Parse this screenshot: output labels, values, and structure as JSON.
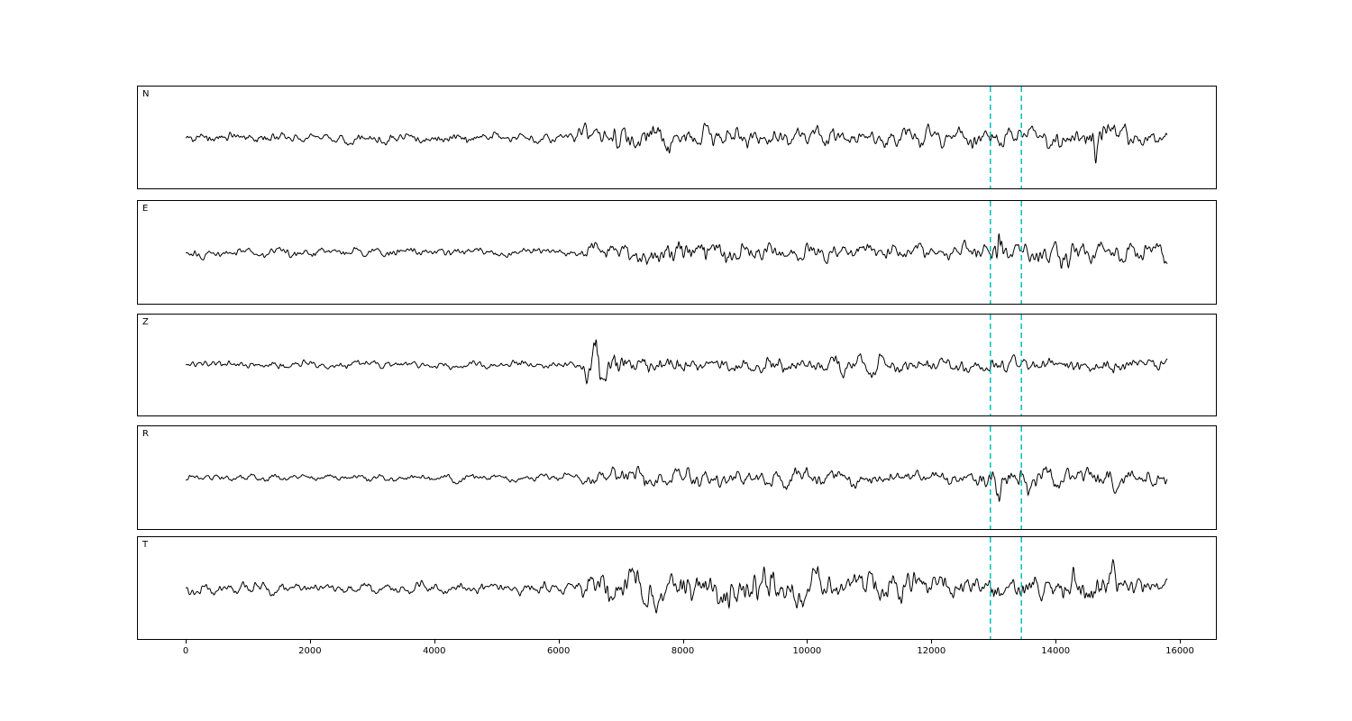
{
  "figure": {
    "background": "#ffffff",
    "trace_color": "#000000",
    "vline_color": "#00bfbf",
    "spine_color": "#000000"
  },
  "chart_data": {
    "type": "line",
    "title": "",
    "description": "Five-panel seismogram: waveform traces for channels N, E, Z, R and T versus sample index, with a cyan dashed pick window near x=12950-13450.",
    "x_start": 0,
    "x_end": 15800,
    "n_points": 2200,
    "xlim": [
      -770,
      16580
    ],
    "x_ticks": [
      0,
      2000,
      4000,
      6000,
      8000,
      10000,
      12000,
      14000,
      16000
    ],
    "vlines": [
      12950,
      13450
    ],
    "grid": false,
    "legend": "none",
    "panels": [
      {
        "label": "N",
        "seed": 11,
        "envelope": [
          [
            0,
            7
          ],
          [
            6200,
            7
          ],
          [
            6450,
            15
          ],
          [
            7200,
            17
          ],
          [
            8200,
            15
          ],
          [
            9500,
            13
          ],
          [
            11500,
            12
          ],
          [
            12800,
            13
          ],
          [
            13050,
            17
          ],
          [
            13400,
            11
          ],
          [
            14300,
            13
          ],
          [
            14650,
            27
          ],
          [
            14950,
            20
          ],
          [
            15300,
            12
          ],
          [
            15800,
            10
          ]
        ]
      },
      {
        "label": "E",
        "seed": 22,
        "envelope": [
          [
            0,
            6
          ],
          [
            6300,
            6
          ],
          [
            6550,
            13
          ],
          [
            7500,
            16
          ],
          [
            8300,
            17
          ],
          [
            9500,
            13
          ],
          [
            11000,
            12
          ],
          [
            12600,
            10
          ],
          [
            12950,
            14
          ],
          [
            13080,
            36
          ],
          [
            13250,
            14
          ],
          [
            13700,
            17
          ],
          [
            14300,
            19
          ],
          [
            14900,
            13
          ],
          [
            15500,
            13
          ],
          [
            15800,
            16
          ]
        ]
      },
      {
        "label": "Z",
        "seed": 33,
        "envelope": [
          [
            0,
            5
          ],
          [
            6300,
            5
          ],
          [
            6450,
            20
          ],
          [
            6600,
            36
          ],
          [
            6800,
            20
          ],
          [
            7200,
            13
          ],
          [
            8100,
            13
          ],
          [
            9000,
            10
          ],
          [
            10500,
            11
          ],
          [
            12000,
            10
          ],
          [
            13000,
            10
          ],
          [
            14500,
            9
          ],
          [
            15800,
            7
          ]
        ]
      },
      {
        "label": "R",
        "seed": 44,
        "envelope": [
          [
            0,
            5
          ],
          [
            6300,
            5
          ],
          [
            6600,
            12
          ],
          [
            7400,
            14
          ],
          [
            8600,
            11
          ],
          [
            10500,
            11
          ],
          [
            12600,
            9
          ],
          [
            12950,
            12
          ],
          [
            13100,
            36
          ],
          [
            13300,
            15
          ],
          [
            13800,
            15
          ],
          [
            14400,
            12
          ],
          [
            14850,
            16
          ],
          [
            15400,
            11
          ],
          [
            15800,
            10
          ]
        ]
      },
      {
        "label": "T",
        "seed": 55,
        "envelope": [
          [
            0,
            8
          ],
          [
            6250,
            8
          ],
          [
            6500,
            19
          ],
          [
            7300,
            24
          ],
          [
            8300,
            21
          ],
          [
            9200,
            25
          ],
          [
            10200,
            22
          ],
          [
            11200,
            19
          ],
          [
            12300,
            16
          ],
          [
            13100,
            15
          ],
          [
            13900,
            17
          ],
          [
            14500,
            27
          ],
          [
            14900,
            23
          ],
          [
            15400,
            13
          ],
          [
            15800,
            11
          ]
        ]
      }
    ]
  }
}
